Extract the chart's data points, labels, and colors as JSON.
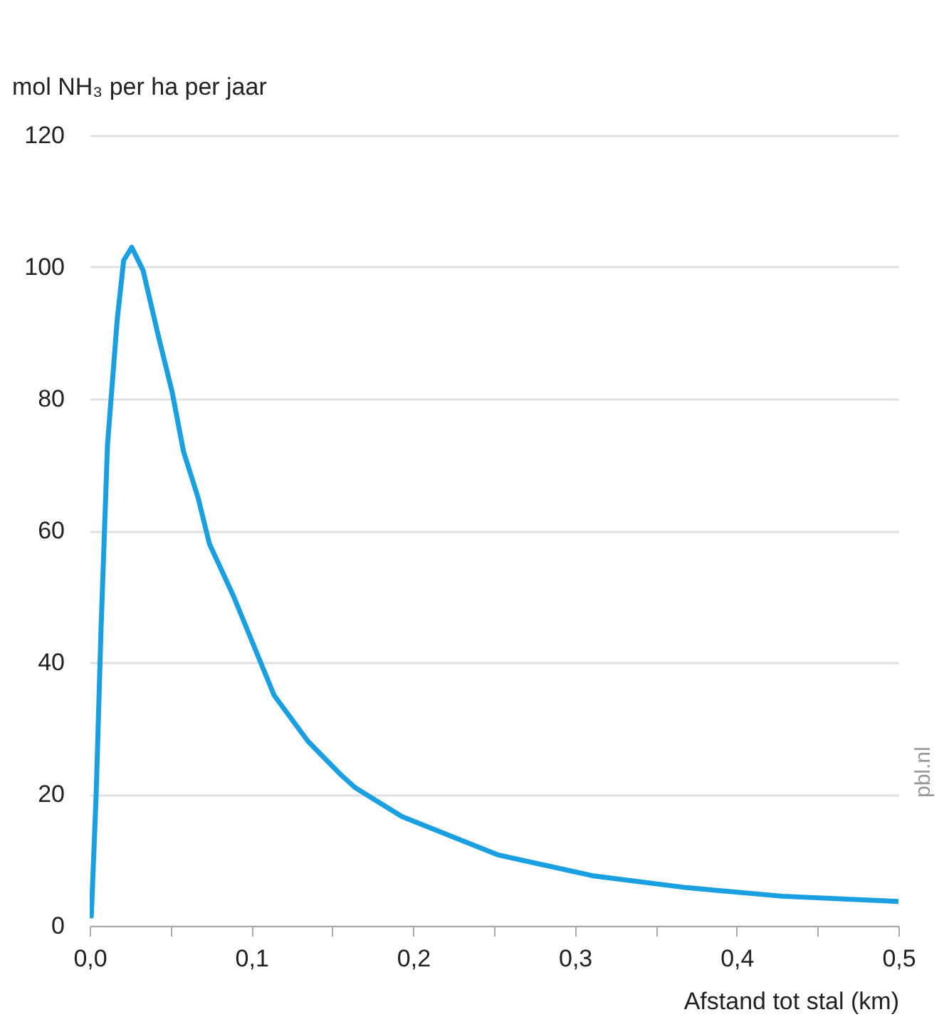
{
  "chart_data": {
    "type": "line",
    "ylabel": "mol NH₃ per ha per jaar",
    "xlabel": "Afstand tot stal (km)",
    "x": [
      0.001,
      0.004,
      0.007,
      0.011,
      0.017,
      0.021,
      0.026,
      0.033,
      0.042,
      0.051,
      0.058,
      0.067,
      0.074,
      0.089,
      0.099,
      0.114,
      0.135,
      0.155,
      0.164,
      0.193,
      0.252,
      0.311,
      0.369,
      0.428,
      0.5
    ],
    "series": [
      {
        "color": "#1aa0e0",
        "values": [
          1.5,
          20,
          45,
          73,
          92,
          101,
          103,
          99.5,
          90,
          81,
          72,
          65,
          58,
          50,
          44,
          35,
          28,
          23,
          21,
          16.6,
          10.8,
          7.6,
          5.8,
          4.5,
          3.7
        ]
      }
    ],
    "xlim": [
      0,
      0.5
    ],
    "ylim": [
      0,
      120
    ],
    "xticks": [
      {
        "value": 0,
        "label": "0,0"
      },
      {
        "value": 0.05,
        "label": null
      },
      {
        "value": 0.1,
        "label": "0,1"
      },
      {
        "value": 0.15,
        "label": null
      },
      {
        "value": 0.2,
        "label": "0,2"
      },
      {
        "value": 0.25,
        "label": null
      },
      {
        "value": 0.3,
        "label": "0,3"
      },
      {
        "value": 0.35,
        "label": null
      },
      {
        "value": 0.4,
        "label": "0,4"
      },
      {
        "value": 0.45,
        "label": null
      },
      {
        "value": 0.5,
        "label": "0,5"
      }
    ],
    "yticks": [
      0,
      20,
      40,
      60,
      80,
      100,
      120
    ],
    "grid": "y",
    "marker": "none",
    "line_style": "solid",
    "annotations": [
      "pbl.nl"
    ]
  }
}
